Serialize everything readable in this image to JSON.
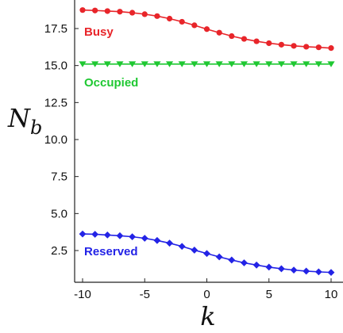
{
  "chart_data": {
    "type": "line",
    "xlabel": "k",
    "ylabel": {
      "main": "N",
      "subscript": "b"
    },
    "xlim": [
      -11,
      11
    ],
    "ylim": [
      0.8,
      19.3
    ],
    "grid": false,
    "x_ticks": [
      {
        "value": -10,
        "label": "-10"
      },
      {
        "value": -5,
        "label": "-5"
      },
      {
        "value": 0,
        "label": "0"
      },
      {
        "value": 5,
        "label": "5"
      },
      {
        "value": 10,
        "label": "10"
      }
    ],
    "y_ticks": [
      {
        "value": 2.5,
        "label": "2.5"
      },
      {
        "value": 5.0,
        "label": "5.0"
      },
      {
        "value": 7.5,
        "label": "7.5"
      },
      {
        "value": 10.0,
        "label": "10.0"
      },
      {
        "value": 12.5,
        "label": "12.5"
      },
      {
        "value": 15.0,
        "label": "15.0"
      },
      {
        "value": 17.5,
        "label": "17.5"
      }
    ],
    "x": [
      -10,
      -9,
      -8,
      -7,
      -6,
      -5,
      -4,
      -3,
      -2,
      -1,
      0,
      1,
      2,
      3,
      4,
      5,
      6,
      7,
      8,
      9,
      10
    ],
    "series": [
      {
        "name": "Busy",
        "color": "#e8252a",
        "marker": "circle",
        "values": [
          18.75,
          18.72,
          18.68,
          18.64,
          18.57,
          18.47,
          18.34,
          18.17,
          17.96,
          17.72,
          17.46,
          17.22,
          16.99,
          16.8,
          16.64,
          16.51,
          16.41,
          16.33,
          16.27,
          16.23,
          16.18
        ]
      },
      {
        "name": "Occupied",
        "color": "#1fc832",
        "marker": "triangle-down",
        "values": [
          15.1,
          15.1,
          15.1,
          15.1,
          15.1,
          15.1,
          15.1,
          15.1,
          15.1,
          15.1,
          15.1,
          15.1,
          15.1,
          15.1,
          15.1,
          15.1,
          15.1,
          15.1,
          15.1,
          15.1,
          15.1
        ]
      },
      {
        "name": "Reserved",
        "color": "#2323e6",
        "marker": "diamond",
        "values": [
          3.62,
          3.6,
          3.55,
          3.5,
          3.43,
          3.33,
          3.18,
          3.0,
          2.78,
          2.53,
          2.3,
          2.07,
          1.86,
          1.67,
          1.52,
          1.38,
          1.27,
          1.18,
          1.11,
          1.06,
          1.02
        ]
      }
    ]
  }
}
